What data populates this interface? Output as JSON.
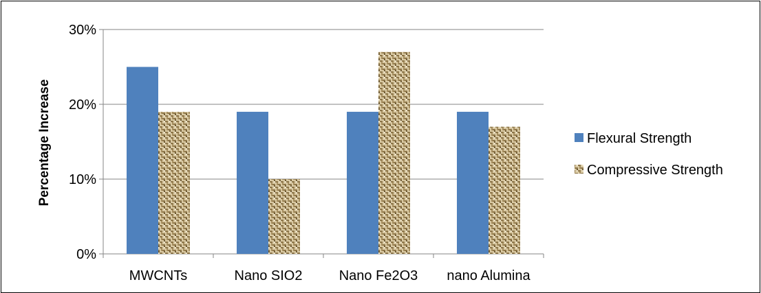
{
  "chart_data": {
    "type": "bar",
    "title": "",
    "xlabel": "",
    "ylabel": "Percentage Increase",
    "ylim": [
      0,
      30
    ],
    "y_ticks": [
      "0%",
      "10%",
      "20%",
      "30%"
    ],
    "y_tick_values": [
      0,
      10,
      20,
      30
    ],
    "grid": true,
    "legend_position": "right",
    "categories": [
      "MWCNTs",
      "Nano SIO2",
      "Nano Fe2O3",
      "nano Alumina"
    ],
    "series": [
      {
        "name": "Flexural Strength",
        "values": [
          25,
          19,
          19,
          19
        ],
        "color": "#4F81BD",
        "fill": "solid"
      },
      {
        "name": "Compressive Strength",
        "values": [
          19,
          10,
          27,
          17
        ],
        "color": "#C9B48A",
        "fill": "woven-texture"
      }
    ]
  }
}
